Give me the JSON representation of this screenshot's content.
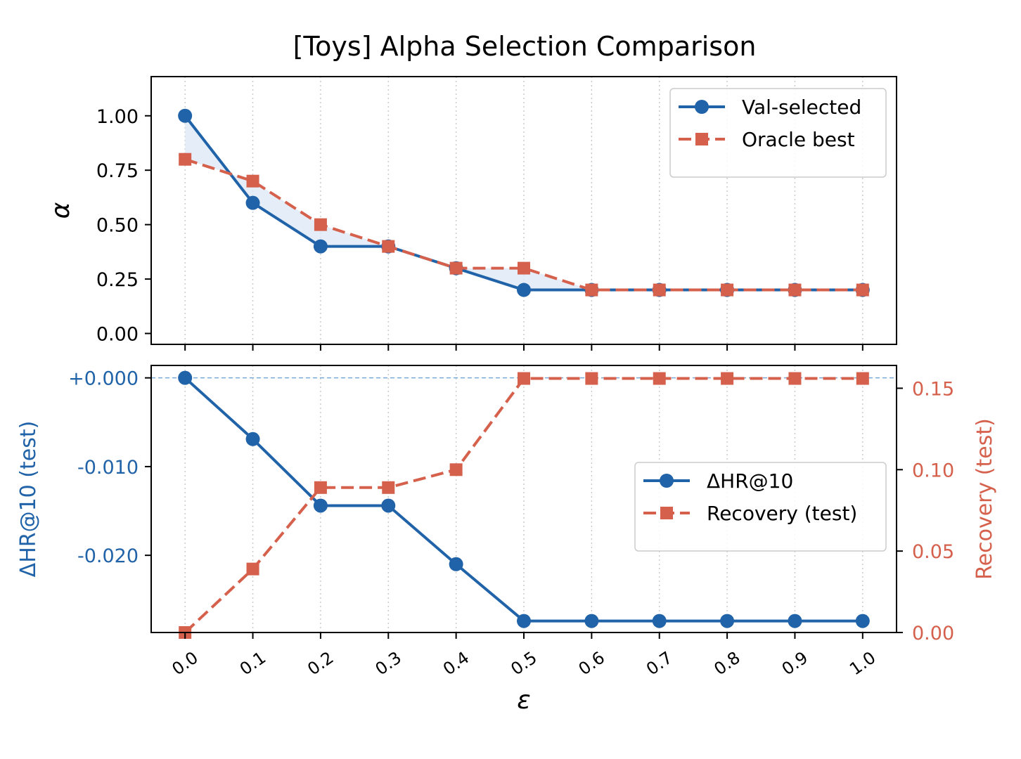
{
  "chart_data": {
    "title": "[Toys] Alpha Selection Comparison",
    "x": [
      0.0,
      0.1,
      0.2,
      0.3,
      0.4,
      0.5,
      0.6,
      0.7,
      0.8,
      0.9,
      1.0
    ],
    "x_tick_labels": [
      "0.0",
      "0.1",
      "0.2",
      "0.3",
      "0.4",
      "0.5",
      "0.6",
      "0.7",
      "0.8",
      "0.9",
      "1.0"
    ],
    "xlabel": "ε",
    "colors": {
      "blue": "#2163a8",
      "red": "#d5614d",
      "fill": "#dfe9f6",
      "ref_line": "#7aa8d8",
      "grid": "#cccccc"
    },
    "charts": [
      {
        "type": "line",
        "ylabel": "α",
        "ylim": [
          -0.05,
          1.18
        ],
        "y_ticks": [
          0.0,
          0.25,
          0.5,
          0.75,
          1.0
        ],
        "y_tick_labels": [
          "0.00",
          "0.25",
          "0.50",
          "0.75",
          "1.00"
        ],
        "grid": "x-dotted",
        "fill_between_series": true,
        "legend_position": "top-right",
        "series": [
          {
            "name": "Val-selected",
            "style": "solid",
            "marker": "circle",
            "color": "#2163a8",
            "values": [
              1.0,
              0.6,
              0.4,
              0.4,
              0.3,
              0.2,
              0.2,
              0.2,
              0.2,
              0.2,
              0.2
            ]
          },
          {
            "name": "Oracle best",
            "style": "dashed",
            "marker": "square",
            "color": "#d5614d",
            "values": [
              0.8,
              0.7,
              0.5,
              0.4,
              0.3,
              0.3,
              0.2,
              0.2,
              0.2,
              0.2,
              0.2
            ]
          }
        ]
      },
      {
        "type": "line",
        "ylabel_left": "ΔHR@10 (test)",
        "ylabel_right": "Recovery (test)",
        "ylim_left": [
          -0.0287,
          0.0014
        ],
        "ylim_right": [
          0.0,
          0.164
        ],
        "y_ticks_left": [
          0.0,
          -0.01,
          -0.02
        ],
        "y_tick_labels_left": [
          "+0.000",
          "-0.010",
          "-0.020"
        ],
        "y_ticks_right": [
          0.0,
          0.05,
          0.1,
          0.15
        ],
        "y_tick_labels_right": [
          "0.00",
          "0.05",
          "0.10",
          "0.15"
        ],
        "reference_line_left": 0.0,
        "grid": "x-dotted",
        "legend_position": "center-right",
        "series": [
          {
            "name": "ΔHR@10",
            "axis": "left",
            "style": "solid",
            "marker": "circle",
            "color": "#2163a8",
            "values": [
              0.0,
              -0.0069,
              -0.0144,
              -0.0144,
              -0.021,
              -0.0274,
              -0.0274,
              -0.0274,
              -0.0274,
              -0.0274,
              -0.0274
            ]
          },
          {
            "name": "Recovery (test)",
            "axis": "right",
            "style": "dashed",
            "marker": "square",
            "color": "#d5614d",
            "values": [
              0.0,
              0.039,
              0.089,
              0.089,
              0.1,
              0.156,
              0.156,
              0.156,
              0.156,
              0.156,
              0.156
            ]
          }
        ]
      }
    ]
  }
}
